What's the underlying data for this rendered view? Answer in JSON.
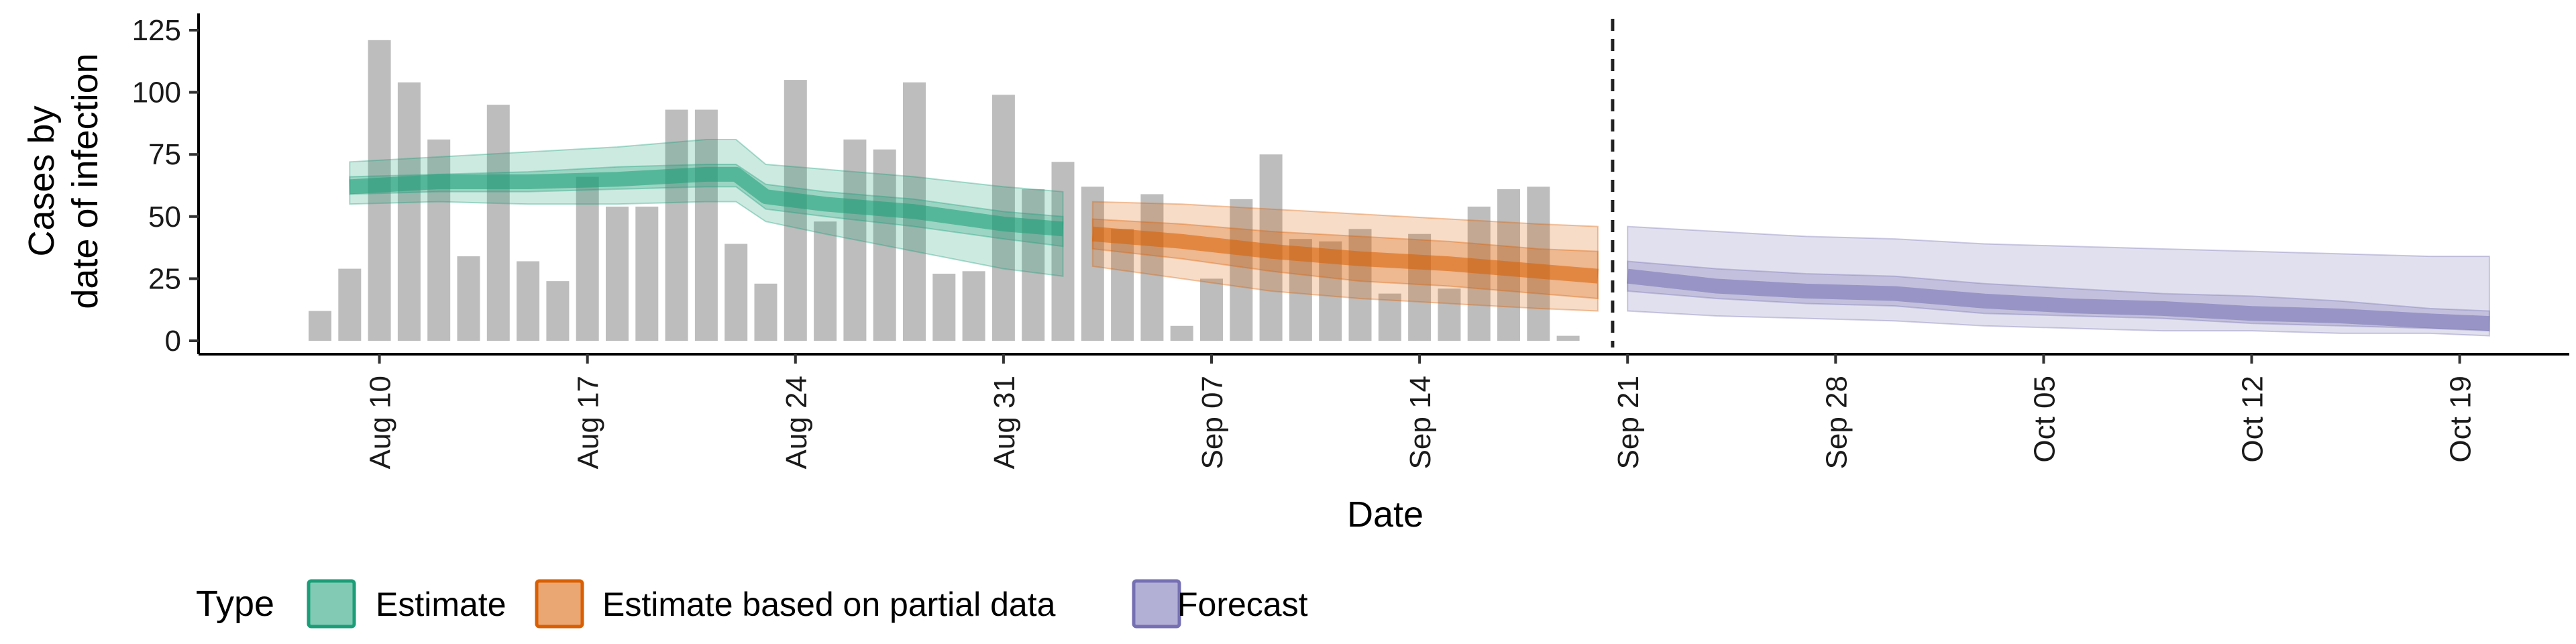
{
  "chart_data": {
    "type": "bar",
    "xlabel": "Date",
    "ylabel_lines": [
      "Cases by",
      "date of infection"
    ],
    "ylim": [
      0,
      125
    ],
    "yticks": [
      0,
      25,
      50,
      75,
      100,
      125
    ],
    "x_start": "2020-08-08",
    "x_end": "2020-10-19",
    "xticks": [
      {
        "date": "2020-08-10",
        "label": "Aug 10"
      },
      {
        "date": "2020-08-17",
        "label": "Aug 17"
      },
      {
        "date": "2020-08-24",
        "label": "Aug 24"
      },
      {
        "date": "2020-08-31",
        "label": "Aug 31"
      },
      {
        "date": "2020-09-07",
        "label": "Sep 07"
      },
      {
        "date": "2020-09-14",
        "label": "Sep 14"
      },
      {
        "date": "2020-09-21",
        "label": "Sep 21"
      },
      {
        "date": "2020-09-28",
        "label": "Sep 28"
      },
      {
        "date": "2020-10-05",
        "label": "Oct 05"
      },
      {
        "date": "2020-10-12",
        "label": "Oct 12"
      },
      {
        "date": "2020-10-19",
        "label": "Oct 19"
      }
    ],
    "bars": [
      12,
      29,
      121,
      104,
      81,
      34,
      95,
      32,
      24,
      66,
      54,
      54,
      93,
      93,
      39,
      23,
      105,
      48,
      81,
      77,
      104,
      27,
      28,
      99,
      61,
      72,
      62,
      45,
      59,
      6,
      25,
      57,
      75,
      41,
      40,
      45,
      19,
      43,
      21,
      54,
      61,
      62,
      2
    ],
    "forecast_line_date": "2020-09-20",
    "bar_color": "#bdbdbd",
    "legend": {
      "title": "Type",
      "items": [
        {
          "label": "Estimate",
          "color": "#1b9e77"
        },
        {
          "label": "Estimate based on partial data",
          "color": "#d95f02"
        },
        {
          "label": "Forecast",
          "color": "#7570b3"
        }
      ]
    },
    "series": [
      {
        "name": "Estimate",
        "color": "#1b9e77",
        "dates": [
          "2020-08-09",
          "2020-08-12",
          "2020-08-15",
          "2020-08-18",
          "2020-08-21",
          "2020-08-22",
          "2020-08-23",
          "2020-08-25",
          "2020-08-28",
          "2020-08-31",
          "2020-09-02"
        ],
        "median": [
          62,
          64,
          64,
          65,
          67,
          67,
          58,
          55,
          52,
          47,
          45
        ],
        "inner_lower": [
          59,
          60,
          60,
          61,
          62,
          62,
          53,
          50,
          46,
          41,
          38
        ],
        "inner_upper": [
          66,
          67,
          68,
          70,
          71,
          71,
          63,
          60,
          57,
          52,
          50
        ],
        "outer_lower": [
          55,
          56,
          55,
          55,
          56,
          56,
          48,
          43,
          36,
          29,
          26
        ],
        "outer_upper": [
          72,
          74,
          76,
          78,
          81,
          81,
          71,
          69,
          66,
          62,
          60
        ]
      },
      {
        "name": "Estimate based on partial data",
        "color": "#d95f02",
        "dates": [
          "2020-09-03",
          "2020-09-06",
          "2020-09-09",
          "2020-09-12",
          "2020-09-15",
          "2020-09-18",
          "2020-09-20"
        ],
        "median": [
          43,
          40,
          36,
          33,
          31,
          28,
          26
        ],
        "inner_lower": [
          37,
          33,
          28,
          24,
          22,
          19,
          17
        ],
        "inner_upper": [
          49,
          47,
          44,
          42,
          40,
          37,
          36
        ],
        "outer_lower": [
          30,
          25,
          20,
          17,
          15,
          13,
          12
        ],
        "outer_upper": [
          56,
          55,
          53,
          51,
          49,
          47,
          46
        ]
      },
      {
        "name": "Forecast",
        "color": "#7570b3",
        "dates": [
          "2020-09-21",
          "2020-09-24",
          "2020-09-27",
          "2020-09-30",
          "2020-10-03",
          "2020-10-06",
          "2020-10-09",
          "2020-10-12",
          "2020-10-15",
          "2020-10-18",
          "2020-10-20"
        ],
        "median": [
          26,
          22,
          20,
          19,
          16,
          14,
          13,
          11,
          10,
          8,
          7
        ],
        "inner_lower": [
          20,
          17,
          15,
          14,
          11,
          10,
          9,
          7,
          6,
          5,
          4
        ],
        "inner_upper": [
          32,
          29,
          27,
          26,
          23,
          21,
          19,
          18,
          16,
          13,
          12
        ],
        "outer_lower": [
          12,
          10,
          9,
          8,
          6,
          5,
          4,
          4,
          3,
          3,
          2
        ],
        "outer_upper": [
          46,
          44,
          42,
          41,
          39,
          38,
          37,
          36,
          35,
          34,
          34
        ]
      }
    ]
  }
}
